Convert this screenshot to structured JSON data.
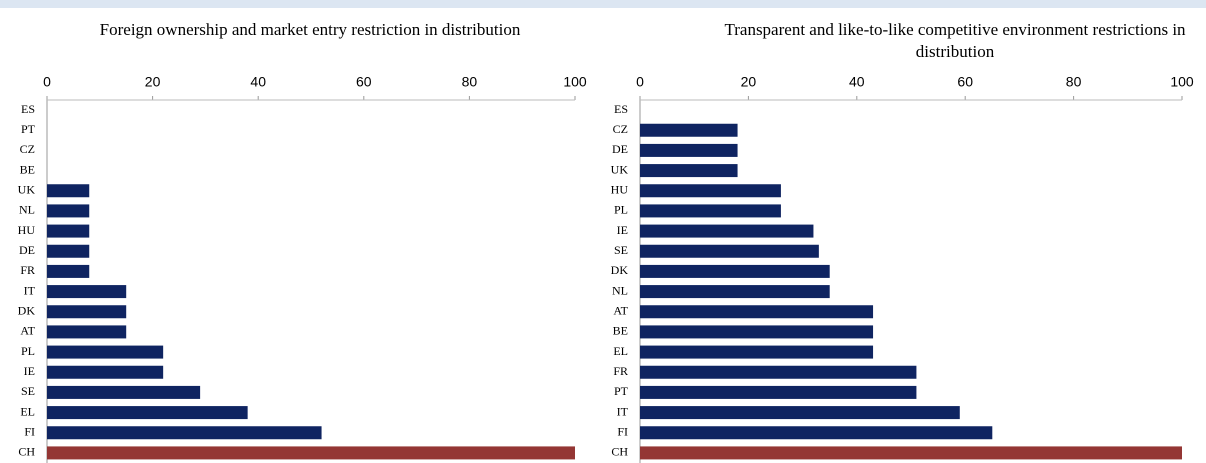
{
  "chart_data": [
    {
      "type": "bar",
      "orientation": "horizontal",
      "title": "Foreign ownership and market entry restriction in distribution",
      "categories": [
        "ES",
        "PT",
        "CZ",
        "BE",
        "UK",
        "NL",
        "HU",
        "DE",
        "FR",
        "IT",
        "DK",
        "AT",
        "PL",
        "IE",
        "SE",
        "EL",
        "FI",
        "CH"
      ],
      "values": [
        0,
        0,
        0,
        0,
        8,
        8,
        8,
        8,
        8,
        15,
        15,
        15,
        22,
        22,
        29,
        38,
        52,
        100
      ],
      "colors": [
        "#0f2461",
        "#0f2461",
        "#0f2461",
        "#0f2461",
        "#0f2461",
        "#0f2461",
        "#0f2461",
        "#0f2461",
        "#0f2461",
        "#0f2461",
        "#0f2461",
        "#0f2461",
        "#0f2461",
        "#0f2461",
        "#0f2461",
        "#0f2461",
        "#0f2461",
        "#943634"
      ],
      "xlim": [
        0,
        100
      ],
      "xticks": [
        0,
        20,
        40,
        60,
        80,
        100
      ],
      "grid": false
    },
    {
      "type": "bar",
      "orientation": "horizontal",
      "title": "Transparent and like-to-like competitive environment restrictions in distribution",
      "categories": [
        "ES",
        "CZ",
        "DE",
        "UK",
        "HU",
        "PL",
        "IE",
        "SE",
        "DK",
        "NL",
        "AT",
        "BE",
        "EL",
        "FR",
        "PT",
        "IT",
        "FI",
        "CH"
      ],
      "values": [
        0,
        18,
        18,
        18,
        26,
        26,
        32,
        33,
        35,
        35,
        43,
        43,
        43,
        51,
        51,
        59,
        65,
        100
      ],
      "colors": [
        "#0f2461",
        "#0f2461",
        "#0f2461",
        "#0f2461",
        "#0f2461",
        "#0f2461",
        "#0f2461",
        "#0f2461",
        "#0f2461",
        "#0f2461",
        "#0f2461",
        "#0f2461",
        "#0f2461",
        "#0f2461",
        "#0f2461",
        "#0f2461",
        "#0f2461",
        "#943634"
      ],
      "xlim": [
        0,
        100
      ],
      "xticks": [
        0,
        20,
        40,
        60,
        80,
        100
      ],
      "grid": false
    }
  ]
}
